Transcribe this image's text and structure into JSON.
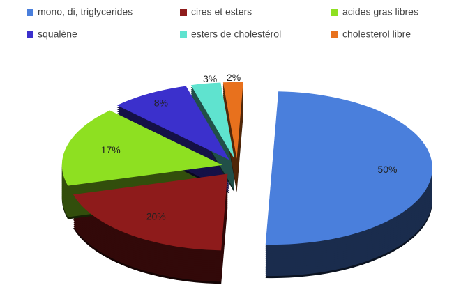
{
  "chart_data": {
    "type": "pie",
    "categories": [
      "mono, di, triglycerides",
      "cires et esters",
      "acides gras libres",
      "squalène",
      "esters de cholestérol",
      "cholesterol libre"
    ],
    "values": [
      50,
      20,
      17,
      8,
      3,
      2
    ],
    "value_labels": [
      "50%",
      "20%",
      "17%",
      "8%",
      "3%",
      "2%"
    ],
    "colors": [
      "#4a7fdc",
      "#8e1b1b",
      "#8ee021",
      "#3b30cc",
      "#5fe3cf",
      "#e8711d"
    ],
    "legend": "top"
  }
}
